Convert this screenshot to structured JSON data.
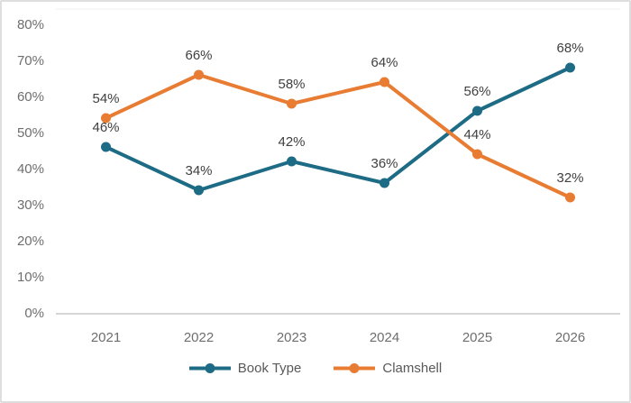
{
  "chart_data": {
    "type": "line",
    "categories": [
      "2021",
      "2022",
      "2023",
      "2024",
      "2025",
      "2026"
    ],
    "series": [
      {
        "name": "Book Type",
        "color": "#1E6B86",
        "values": [
          46,
          34,
          42,
          36,
          56,
          68
        ],
        "labels": [
          "46%",
          "34%",
          "42%",
          "36%",
          "56%",
          "68%"
        ]
      },
      {
        "name": "Clamshell",
        "color": "#E87C33",
        "values": [
          54,
          66,
          58,
          64,
          44,
          32
        ],
        "labels": [
          "54%",
          "66%",
          "58%",
          "64%",
          "44%",
          "32%"
        ]
      }
    ],
    "ylim": [
      0,
      80
    ],
    "ytick_step": 10,
    "ytick_labels": [
      "0%",
      "10%",
      "20%",
      "30%",
      "40%",
      "50%",
      "60%",
      "70%",
      "80%"
    ],
    "grid": "baseline-only",
    "legend_position": "bottom"
  },
  "colors": {
    "axis_line": "#c9c9c9",
    "plot_top_border": "#efefef",
    "axis_text": "#6e6e6e",
    "data_label_text": "#404040",
    "legend_text": "#595959",
    "frame_border": "#dedede",
    "background": "#ffffff"
  }
}
